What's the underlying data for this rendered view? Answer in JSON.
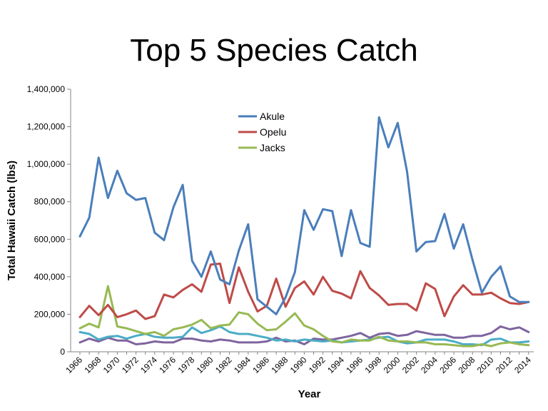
{
  "chart_data": {
    "type": "line",
    "title": "Top 5 Species Catch",
    "xlabel": "Year",
    "ylabel": "Total Hawaii Catch (lbs)",
    "ylim": [
      0,
      1400000
    ],
    "yticks": [
      0,
      200000,
      400000,
      600000,
      800000,
      1000000,
      1200000,
      1400000
    ],
    "ytick_labels": [
      "0",
      "200,000",
      "400,000",
      "600,000",
      "800,000",
      "1,000,000",
      "1,200,000",
      "1,400,000"
    ],
    "xticks": [
      "1966",
      "1968",
      "1970",
      "1972",
      "1974",
      "1976",
      "1978",
      "1980",
      "1982",
      "1984",
      "1986",
      "1988",
      "1990",
      "1992",
      "1994",
      "1996",
      "1998",
      "2000",
      "2002",
      "2004",
      "2006",
      "2008",
      "2010",
      "2012",
      "2014"
    ],
    "x": [
      1966,
      1967,
      1968,
      1969,
      1970,
      1971,
      1972,
      1973,
      1974,
      1975,
      1976,
      1977,
      1978,
      1979,
      1980,
      1981,
      1982,
      1983,
      1984,
      1985,
      1986,
      1987,
      1988,
      1989,
      1990,
      1991,
      1992,
      1993,
      1994,
      1995,
      1996,
      1997,
      1998,
      1999,
      2000,
      2001,
      2002,
      2003,
      2004,
      2005,
      2006,
      2007,
      2008,
      2009,
      2010,
      2011,
      2012,
      2013,
      2014
    ],
    "legend_position": "top-center",
    "grid": false,
    "series": [
      {
        "name": "Akule",
        "color": "#4a7ebb",
        "values": [
          615000,
          715000,
          1035000,
          820000,
          965000,
          845000,
          810000,
          820000,
          635000,
          595000,
          770000,
          890000,
          485000,
          400000,
          535000,
          385000,
          360000,
          540000,
          680000,
          280000,
          240000,
          200000,
          290000,
          425000,
          755000,
          650000,
          760000,
          750000,
          510000,
          755000,
          580000,
          560000,
          1250000,
          1090000,
          1220000,
          960000,
          535000,
          585000,
          590000,
          735000,
          550000,
          680000,
          490000,
          315000,
          400000,
          455000,
          295000,
          265000,
          265000
        ]
      },
      {
        "name": "Opelu",
        "color": "#be4b48",
        "values": [
          185000,
          245000,
          195000,
          250000,
          185000,
          200000,
          220000,
          175000,
          190000,
          305000,
          290000,
          330000,
          360000,
          320000,
          465000,
          470000,
          260000,
          450000,
          320000,
          215000,
          245000,
          390000,
          240000,
          340000,
          375000,
          305000,
          400000,
          325000,
          310000,
          285000,
          430000,
          340000,
          300000,
          250000,
          255000,
          255000,
          220000,
          365000,
          335000,
          190000,
          295000,
          355000,
          305000,
          305000,
          315000,
          285000,
          260000,
          255000,
          265000
        ]
      },
      {
        "name": "Jacks",
        "color": "#98b954",
        "values": [
          125000,
          150000,
          130000,
          350000,
          135000,
          125000,
          110000,
          95000,
          105000,
          85000,
          120000,
          130000,
          145000,
          170000,
          125000,
          140000,
          145000,
          210000,
          200000,
          150000,
          115000,
          120000,
          160000,
          205000,
          140000,
          120000,
          85000,
          55000,
          50000,
          65000,
          60000,
          60000,
          80000,
          60000,
          55000,
          55000,
          50000,
          50000,
          40000,
          40000,
          35000,
          30000,
          30000,
          40000,
          30000,
          45000,
          50000,
          40000,
          35000
        ]
      },
      {
        "name": "",
        "color": "#4bacc6",
        "values": [
          105000,
          95000,
          65000,
          80000,
          85000,
          70000,
          85000,
          95000,
          80000,
          75000,
          75000,
          80000,
          130000,
          100000,
          115000,
          135000,
          105000,
          95000,
          95000,
          85000,
          75000,
          60000,
          65000,
          55000,
          65000,
          60000,
          55000,
          60000,
          50000,
          55000,
          60000,
          65000,
          75000,
          80000,
          55000,
          45000,
          50000,
          65000,
          65000,
          65000,
          55000,
          40000,
          40000,
          35000,
          65000,
          70000,
          50000,
          50000,
          55000
        ]
      },
      {
        "name": "",
        "color": "#7e649e",
        "values": [
          50000,
          70000,
          55000,
          75000,
          60000,
          60000,
          40000,
          45000,
          55000,
          50000,
          50000,
          70000,
          70000,
          60000,
          55000,
          65000,
          60000,
          50000,
          50000,
          50000,
          55000,
          75000,
          55000,
          60000,
          40000,
          70000,
          65000,
          65000,
          75000,
          85000,
          100000,
          75000,
          95000,
          100000,
          85000,
          90000,
          110000,
          100000,
          90000,
          90000,
          75000,
          75000,
          85000,
          85000,
          100000,
          135000,
          120000,
          130000,
          105000
        ]
      }
    ]
  }
}
